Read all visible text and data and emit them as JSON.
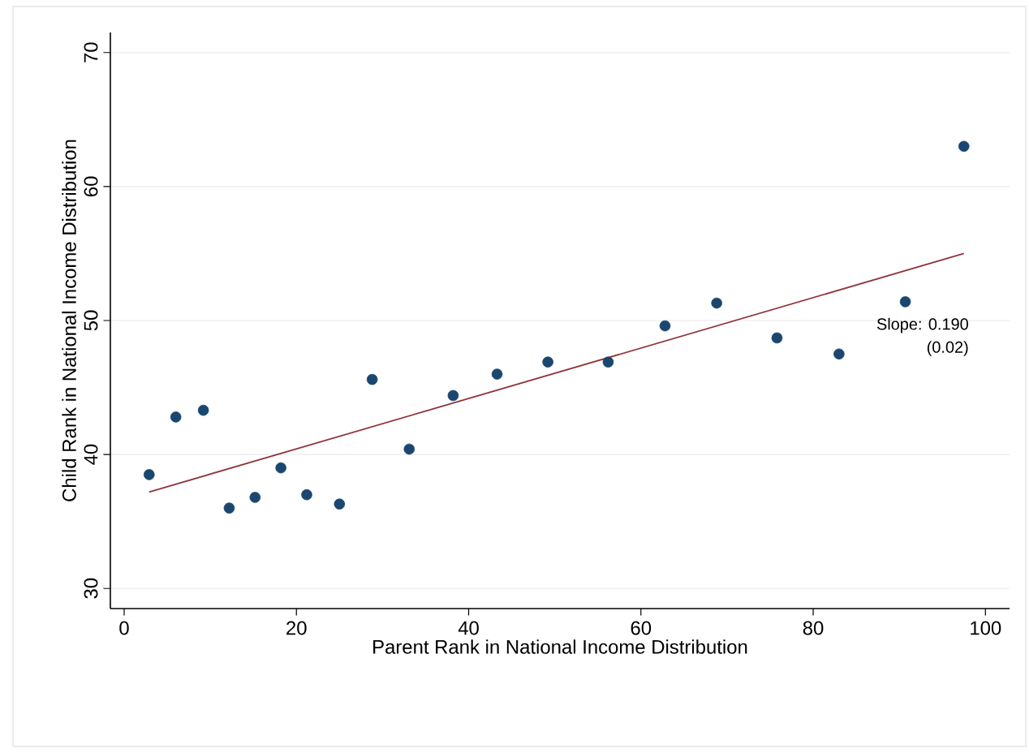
{
  "chart_data": {
    "type": "scatter",
    "xlabel": "Parent Rank in National Income Distribution",
    "ylabel": "Child Rank in National Income Distribution",
    "x": [
      2.9,
      6.0,
      9.2,
      12.2,
      15.2,
      18.2,
      21.2,
      25.0,
      28.8,
      33.1,
      38.2,
      43.3,
      49.2,
      56.2,
      62.8,
      68.8,
      75.8,
      83.0,
      90.7,
      97.5
    ],
    "series": [
      {
        "color": "#1a476f",
        "values": [
          38.5,
          42.8,
          43.3,
          36.0,
          36.8,
          39.0,
          37.0,
          36.3,
          45.6,
          40.4,
          44.4,
          46.0,
          46.9,
          46.9,
          49.6,
          51.3,
          48.7,
          47.5,
          51.4,
          63.0
        ]
      },
      {
        "type": "line",
        "marker": "none",
        "color": "#90353b",
        "x": [
          2.9,
          97.5
        ],
        "values": [
          37.2,
          55.0
        ]
      }
    ],
    "annotations": [
      "Slope: 0.190",
      "(0.02)"
    ],
    "xlim": [
      -1.6,
      102.8
    ],
    "ylim": [
      28.5,
      71.5
    ],
    "xticks": [
      0,
      20,
      40,
      60,
      80,
      100
    ],
    "yticks": [
      30,
      40,
      50,
      60,
      70
    ],
    "grid": "y",
    "marker": "circle"
  }
}
